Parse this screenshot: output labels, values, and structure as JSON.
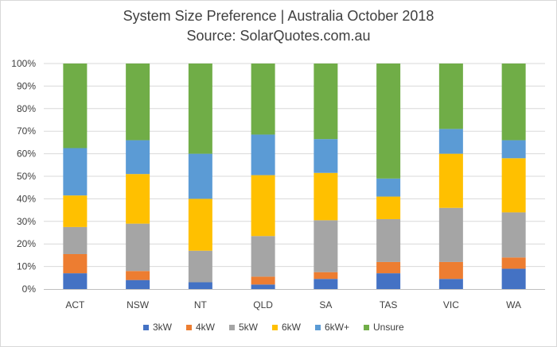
{
  "chart_data": {
    "type": "bar",
    "stacked": true,
    "percent_stacked": true,
    "title": "System Size Preference  | Australia October 2018",
    "subtitle": "Source: SolarQuotes.com.au",
    "categories": [
      "ACT",
      "NSW",
      "NT",
      "QLD",
      "SA",
      "TAS",
      "VIC",
      "WA"
    ],
    "ylim": [
      0,
      100
    ],
    "yticks": [
      "0%",
      "10%",
      "20%",
      "30%",
      "40%",
      "50%",
      "60%",
      "70%",
      "80%",
      "90%",
      "100%"
    ],
    "grid": true,
    "legend_position": "bottom",
    "series": [
      {
        "name": "3kW",
        "color": "#4472c4",
        "values": [
          7,
          4,
          3,
          2,
          4.5,
          7,
          4.5,
          9
        ]
      },
      {
        "name": "4kW",
        "color": "#ed7d31",
        "values": [
          8.5,
          4,
          0,
          3.5,
          3,
          5,
          7.5,
          5
        ]
      },
      {
        "name": "5kW",
        "color": "#a5a5a5",
        "values": [
          12,
          21,
          14,
          18,
          23,
          19,
          24,
          20
        ]
      },
      {
        "name": "6kW",
        "color": "#ffc000",
        "values": [
          14,
          22,
          23,
          27,
          21,
          10,
          24,
          24
        ]
      },
      {
        "name": "6kW+",
        "color": "#5b9bd5",
        "values": [
          21,
          15,
          20,
          18,
          15,
          8,
          11,
          8
        ]
      },
      {
        "name": "Unsure",
        "color": "#70ad47",
        "values": [
          37.5,
          34,
          40,
          31.5,
          33.5,
          51,
          29,
          34
        ]
      }
    ]
  }
}
